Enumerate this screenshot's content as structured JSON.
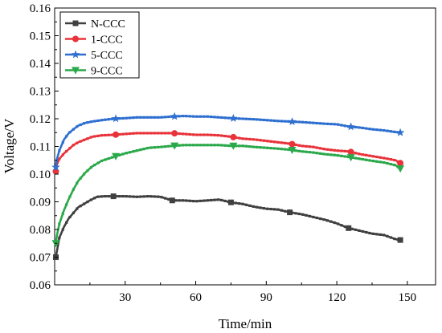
{
  "chart_data": {
    "type": "line",
    "xlabel": "Time/min",
    "ylabel": "Voltage/V",
    "xlim": [
      0,
      162
    ],
    "ylim": [
      0.06,
      0.16
    ],
    "x_ticks": [
      30,
      60,
      90,
      120,
      150
    ],
    "y_ticks": [
      0.06,
      0.07,
      0.08,
      0.09,
      0.1,
      0.11,
      0.12,
      0.13,
      0.14,
      0.15,
      0.16
    ],
    "x_tick_labels": [
      "30",
      "60",
      "90",
      "120",
      "150"
    ],
    "y_tick_labels": [
      "0.06",
      "0.07",
      "0.08",
      "0.09",
      "0.10",
      "0.11",
      "0.12",
      "0.13",
      "0.14",
      "0.15",
      "0.16"
    ],
    "grid": false,
    "legend_position": "top-left",
    "series": [
      {
        "name": "N-CCC",
        "color": "#404040",
        "marker": "square",
        "x": [
          0.5,
          2,
          4,
          6,
          8,
          10,
          12,
          15,
          18,
          21,
          25,
          30,
          35,
          40,
          45,
          50,
          55,
          60,
          65,
          70,
          75,
          80,
          85,
          90,
          95,
          100,
          105,
          110,
          115,
          120,
          125,
          130,
          135,
          140,
          145,
          147
        ],
        "y": [
          0.07,
          0.077,
          0.081,
          0.084,
          0.086,
          0.088,
          0.089,
          0.0905,
          0.0918,
          0.092,
          0.092,
          0.092,
          0.0918,
          0.092,
          0.0918,
          0.0905,
          0.0905,
          0.0902,
          0.0905,
          0.0908,
          0.0898,
          0.0892,
          0.0882,
          0.0875,
          0.0872,
          0.0862,
          0.0855,
          0.0845,
          0.0835,
          0.0822,
          0.0805,
          0.0795,
          0.0785,
          0.078,
          0.0765,
          0.0762
        ],
        "marker_x": [
          0.5,
          25,
          50,
          75,
          100,
          125,
          147
        ]
      },
      {
        "name": "1-CCC",
        "color": "#e8333a",
        "marker": "circle",
        "x": [
          0.5,
          1,
          2,
          4,
          6,
          8,
          10,
          13,
          16,
          20,
          25,
          30,
          35,
          40,
          45,
          50,
          55,
          60,
          65,
          70,
          75,
          80,
          85,
          90,
          95,
          100,
          105,
          110,
          115,
          120,
          125,
          130,
          135,
          140,
          145,
          147
        ],
        "y": [
          0.101,
          0.1035,
          0.1055,
          0.1075,
          0.109,
          0.1105,
          0.1115,
          0.1125,
          0.1135,
          0.114,
          0.1142,
          0.1145,
          0.1148,
          0.1148,
          0.1148,
          0.1148,
          0.1145,
          0.1142,
          0.1142,
          0.114,
          0.1135,
          0.1128,
          0.1125,
          0.112,
          0.1115,
          0.111,
          0.1102,
          0.1098,
          0.109,
          0.1085,
          0.1082,
          0.1072,
          0.1065,
          0.1058,
          0.105,
          0.104
        ],
        "marker_x": [
          0.5,
          26,
          51,
          76,
          101,
          126,
          147
        ]
      },
      {
        "name": "5-CCC",
        "color": "#2e6fd0",
        "marker": "star",
        "x": [
          0.5,
          1,
          2,
          4,
          6,
          8,
          10,
          13,
          16,
          20,
          25,
          30,
          35,
          40,
          45,
          50,
          55,
          60,
          65,
          70,
          75,
          80,
          85,
          90,
          95,
          100,
          105,
          110,
          115,
          120,
          125,
          130,
          135,
          140,
          145,
          147
        ],
        "y": [
          0.1025,
          0.1055,
          0.1085,
          0.1125,
          0.1148,
          0.1162,
          0.1175,
          0.1185,
          0.119,
          0.1195,
          0.12,
          0.1202,
          0.1205,
          0.1205,
          0.1205,
          0.1208,
          0.121,
          0.1208,
          0.1208,
          0.1205,
          0.1202,
          0.12,
          0.1198,
          0.1195,
          0.1192,
          0.119,
          0.1188,
          0.1185,
          0.1182,
          0.118,
          0.1172,
          0.1168,
          0.1162,
          0.1158,
          0.1152,
          0.115
        ],
        "marker_x": [
          0.5,
          26,
          51,
          76,
          101,
          126,
          147
        ]
      },
      {
        "name": "9-CCC",
        "color": "#2aa84a",
        "marker": "triangle-down",
        "x": [
          0.5,
          1,
          2,
          4,
          6,
          8,
          10,
          13,
          16,
          20,
          25,
          30,
          35,
          40,
          45,
          50,
          55,
          60,
          65,
          70,
          75,
          80,
          85,
          90,
          95,
          100,
          105,
          110,
          115,
          120,
          125,
          130,
          135,
          140,
          145,
          147
        ],
        "y": [
          0.075,
          0.078,
          0.082,
          0.087,
          0.091,
          0.0945,
          0.0975,
          0.1005,
          0.1028,
          0.1048,
          0.1062,
          0.1075,
          0.1085,
          0.1095,
          0.1098,
          0.1102,
          0.1105,
          0.1105,
          0.1105,
          0.1105,
          0.1102,
          0.1102,
          0.1098,
          0.1095,
          0.1092,
          0.1088,
          0.1082,
          0.1078,
          0.1072,
          0.1068,
          0.1062,
          0.1055,
          0.1048,
          0.1042,
          0.1032,
          0.102
        ],
        "marker_x": [
          0.5,
          26,
          51,
          76,
          101,
          126,
          147
        ]
      }
    ]
  }
}
